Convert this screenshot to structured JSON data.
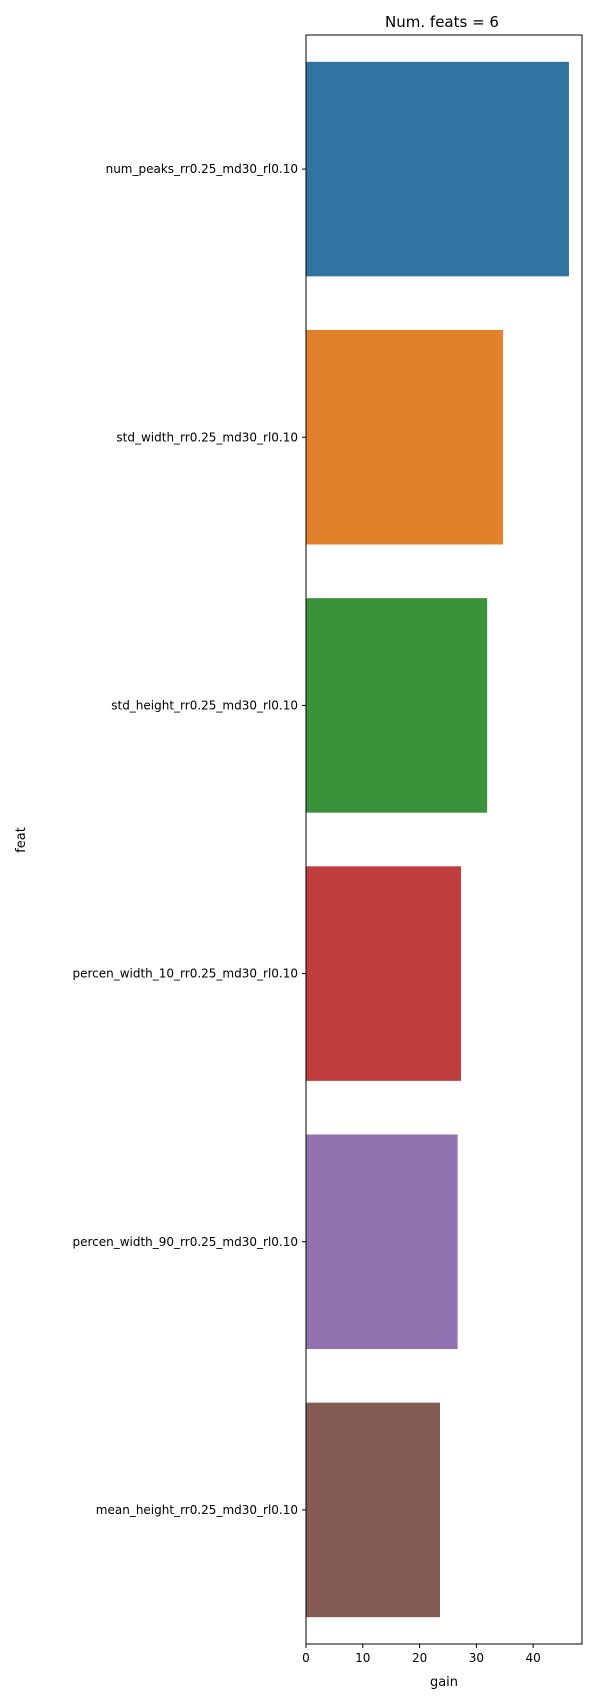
{
  "chart_data": {
    "type": "bar",
    "orientation": "horizontal",
    "title": "Num. feats = 6",
    "xlabel": "gain",
    "ylabel": "feat",
    "categories": [
      "num_peaks_rr0.25_md30_rl0.10",
      "std_width_rr0.25_md30_rl0.10",
      "std_height_rr0.25_md30_rl0.10",
      "percen_width_10_rr0.25_md30_rl0.10",
      "percen_width_90_rr0.25_md30_rl0.10",
      "mean_height_rr0.25_md30_rl0.10"
    ],
    "values": [
      46.3,
      34.7,
      31.9,
      27.3,
      26.7,
      23.6
    ],
    "colors": [
      "#3274a1",
      "#e1812c",
      "#3a923a",
      "#c03d3e",
      "#9372b2",
      "#845b53"
    ],
    "xlim": [
      0,
      48.6
    ],
    "xticks": [
      0,
      10,
      20,
      30,
      40
    ],
    "grid": false,
    "legend": "none"
  }
}
